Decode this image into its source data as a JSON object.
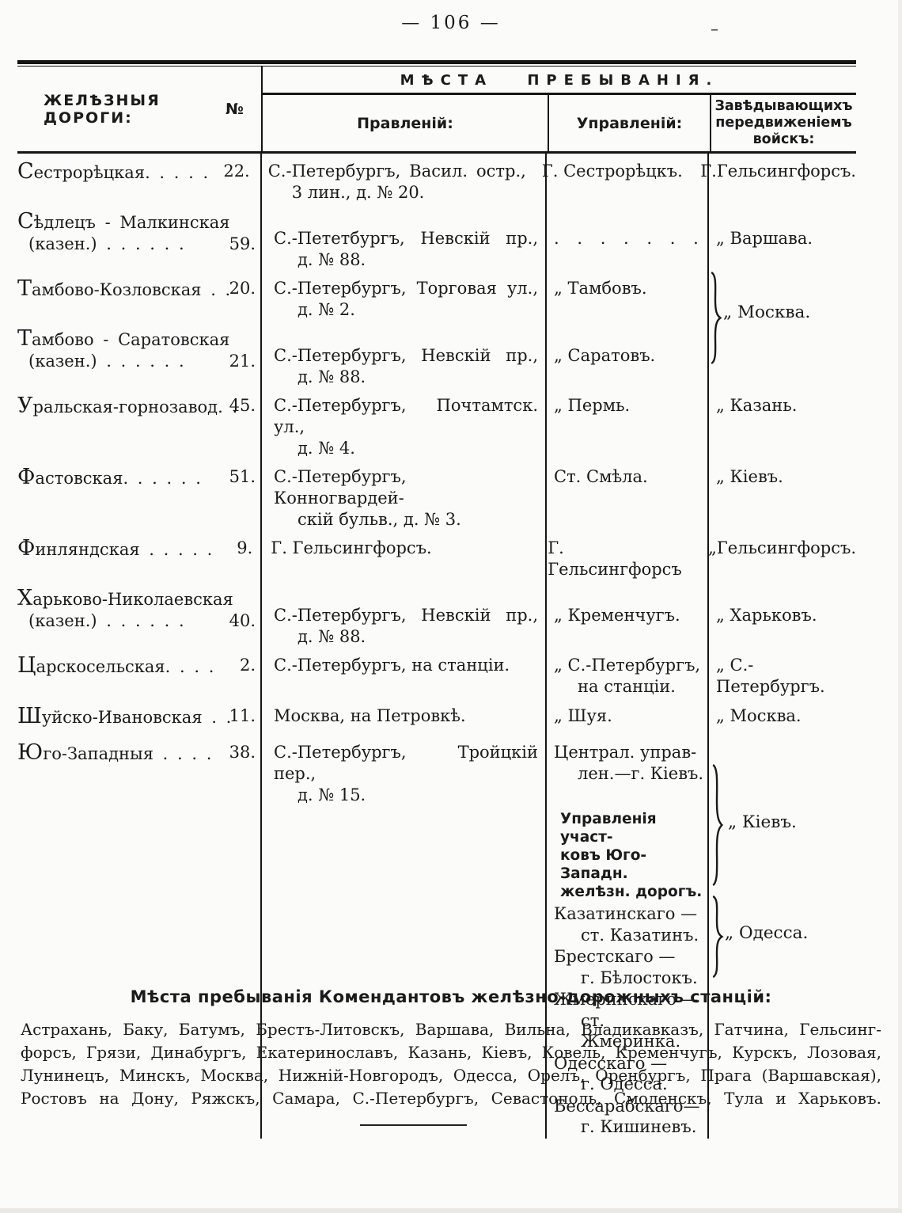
{
  "page": {
    "number_display": "— 106 —",
    "stray_mark": "–"
  },
  "table": {
    "header": {
      "railways_label": "ЖЕЛѢЗНЫЯ ДОРОГИ:",
      "number_symbol": "№",
      "places_title": "МѢСТА ПРЕБЫВАНІЯ.",
      "pravlenij": "Правленій:",
      "upravlenij": "Управленій:",
      "zaved_lines": [
        "Завѣдывающихъ",
        "передвиженіемъ",
        "войскъ:"
      ]
    },
    "rows": [
      {
        "name": "Сестрорѣцкая. .  .  .  .",
        "num": "22.",
        "prav": [
          "С.-Петербургъ, Васил. остр.,",
          "3 лин., д. № 20."
        ],
        "uprav": [
          "Г. Сестрорѣцкъ."
        ],
        "zaved": [
          "Г.Гельсингфорсъ."
        ]
      },
      {
        "name_pre": "Сѣдлецъ - Малкинская",
        "name": "(казен.) .  .  .  .  .  .",
        "num": "59.",
        "prav": [
          "С.-Пететбургъ, Невскій пр.,",
          "д. № 88."
        ],
        "uprav": [
          ". . . . . . ."
        ],
        "zaved": [
          "„ Варшава."
        ]
      },
      {
        "name": "Тамбово-Козловская .  .",
        "num": "20.",
        "prav": [
          "С.-Петербургъ, Торговая ул.,",
          "д. № 2."
        ],
        "uprav": [
          "„ Тамбовъ."
        ],
        "zaved": []
      },
      {
        "name_pre": "Тамбово - Саратовская",
        "name": "(казен.)  .  .  .  .  .  .",
        "num": "21.",
        "prav": [
          "С.-Петербургъ, Невскій пр.,",
          "д. № 88."
        ],
        "uprav": [
          "„ Саратовъ."
        ],
        "zaved": []
      },
      {
        "name": "Уральская-горнозавод. .",
        "num": "45.",
        "prav": [
          "С.-Петербургъ, Почтамтск. ул.,",
          "д. № 4."
        ],
        "uprav": [
          "„ Пермь."
        ],
        "zaved": [
          "„ Казань."
        ]
      },
      {
        "name": "Фастовская. .  .  .  .  .",
        "num": "51.",
        "prav": [
          "С.-Петербургъ, Конногвардей-",
          "скій бульв., д. № 3."
        ],
        "uprav": [
          "Ст. Смѣла."
        ],
        "zaved": [
          "„ Кіевъ."
        ]
      },
      {
        "name": "Финляндская  .  .  .  .  .",
        "num": "9.",
        "prav": [
          "Г. Гельсингфорсъ."
        ],
        "uprav": [
          "Г. Гельсингфорсъ"
        ],
        "zaved": [
          "„Гельсингфорсъ."
        ]
      },
      {
        "name_pre": "Харьково-Николаевская",
        "name": "(казен.)  .  .  .  .  .  .",
        "num": "40.",
        "prav": [
          "С.-Петербургъ, Невскій пр.,",
          "д. № 88."
        ],
        "uprav": [
          "„ Кременчугъ."
        ],
        "zaved": [
          "„ Харьковъ."
        ]
      },
      {
        "name": "Царскосельская. .  .  .",
        "num": "2.",
        "prav": [
          "С.-Петербургъ, на станціи."
        ],
        "uprav": [
          "„ С.-Петербургъ,",
          "на станціи."
        ],
        "zaved": [
          "„ С.-Петербургъ."
        ]
      },
      {
        "name": "Шуйско-Ивановская .  .",
        "num": "11.",
        "prav": [
          "Москва, на Петровкѣ."
        ],
        "uprav": [
          "„ Шуя."
        ],
        "zaved": [
          "„ Москва."
        ]
      },
      {
        "name": "Юго-Западныя  .  .  .  .",
        "num": "38.",
        "prav": [
          "С.-Петербургъ, Тройцкій пер.,",
          "д. № 15."
        ],
        "uprav": [
          "Централ. управ-",
          "лен.—г. Кіевъ."
        ],
        "zaved": []
      }
    ],
    "merged": {
      "moscow_label": "„ Москва."
    },
    "subsection": {
      "heading_lines": [
        "Управленія участ-",
        "ковъ Юго-Западн.",
        "желѣзн. дорогъ."
      ],
      "entries": [
        [
          "Казатинскаго —",
          "ст. Казатинъ."
        ],
        [
          "Брестскаго —",
          "г. Бѣлостокъ."
        ],
        [
          "Жмеринскаго —",
          "ст. Жмеринка."
        ],
        [
          "Одесскаго —",
          "г. Одесса."
        ],
        [
          "Бессарабскаго—",
          "г. Кишиневъ."
        ]
      ],
      "kiev_label": "„ Кіевъ.",
      "odessa_label": "„ Одесса."
    }
  },
  "footer": {
    "heading": "Мѣста пребыванія Комендантовъ желѣзно-дорожныхъ станцій:",
    "lines": [
      "Астрахань, Баку, Батумъ, Брестъ-Литовскъ, Варшава, Вильна, Владикавказъ, Гатчина, Гельсинг-",
      "форсъ, Грязи, Динабургъ, Екатеринославъ, Казань, Кіевъ, Ковель, Кременчугъ, Курскъ, Лозовая,",
      "Лунинецъ, Минскъ, Москва, Нижній-Новгородъ, Одесса, Орелъ, Оренбургъ, Прага (Варшавская),",
      "Ростовъ на Дону, Ряжскъ, Самара, С.-Петербургъ, Севастополь, Смоленскъ, Тула и Харьковъ."
    ]
  },
  "colors": {
    "ink": "#151515",
    "paper": "#fbfbf9"
  }
}
